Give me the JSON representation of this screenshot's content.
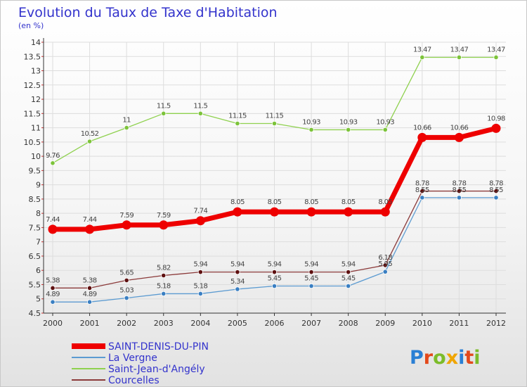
{
  "header": {
    "title": "Evolution du Taux de Taxe d'Habitation",
    "unit": "(en %)"
  },
  "colors": {
    "background_top": "#ffffff",
    "background_bottom": "#e4e4e4",
    "title": "#3333cc",
    "grid": "#dddddd",
    "axis": "#333333"
  },
  "logo": {
    "text": "Proxiti",
    "letter_colors": [
      "#2a7fd4",
      "#e3491b",
      "#7cbc2a",
      "#f0a500",
      "#2a7fd4",
      "#e3491b",
      "#7cbc2a"
    ]
  },
  "chart_data": {
    "type": "line",
    "title": "Evolution du Taux de Taxe d'Habitation",
    "ylabel": "(en %)",
    "xlabel": "",
    "x": [
      "2000",
      "2001",
      "2002",
      "2003",
      "2004",
      "2005",
      "2006",
      "2007",
      "2008",
      "2009",
      "2010",
      "2011",
      "2012"
    ],
    "ylim": [
      4.5,
      14
    ],
    "yticks": [
      4.5,
      5,
      5.5,
      6,
      6.5,
      7,
      7.5,
      8,
      8.5,
      9,
      9.5,
      10,
      10.5,
      11,
      11.5,
      12,
      12.5,
      13,
      13.5,
      14
    ],
    "ytick_labels": [
      "4.5",
      "5",
      "5.5",
      "6",
      "6.5",
      "7",
      "7.5",
      "8",
      "8.5",
      "9",
      "9.5",
      "10",
      "10.5",
      "11",
      "11.5",
      "12",
      "12.5",
      "13",
      "13.5",
      "14"
    ],
    "grid": true,
    "legend_position": "bottom-left",
    "series": [
      {
        "name": "Saint-Jean-d'Angély",
        "color": "#8fd14f",
        "point_color": "#7cc33a",
        "width": 1.3,
        "marker": 3.2,
        "values": [
          9.76,
          10.52,
          11,
          11.5,
          11.5,
          11.15,
          11.15,
          10.93,
          10.93,
          10.93,
          13.47,
          13.47,
          13.47
        ],
        "labels": [
          "9.76",
          "10.52",
          "11",
          "11.5",
          "11.5",
          "11.15",
          "11.15",
          "10.93",
          "10.93",
          "10.93",
          "13.47",
          "13.47",
          "13.47"
        ]
      },
      {
        "name": "Courcelles",
        "color": "#8b3a3a",
        "point_color": "#5e1010",
        "width": 1.3,
        "marker": 3.2,
        "values": [
          5.38,
          5.38,
          5.65,
          5.82,
          5.94,
          5.94,
          5.94,
          5.94,
          5.94,
          6.18,
          8.78,
          8.78,
          8.78
        ],
        "labels": [
          "5.38",
          "5.38",
          "5.65",
          "5.82",
          "5.94",
          "5.94",
          "5.94",
          "5.94",
          "5.94",
          "6.18",
          "8.78",
          "8.78",
          "8.78"
        ]
      },
      {
        "name": "La Vergne",
        "color": "#5c9bd1",
        "point_color": "#3a7fc2",
        "width": 1.3,
        "marker": 3.2,
        "values": [
          4.89,
          4.89,
          5.03,
          5.18,
          5.18,
          5.34,
          5.45,
          5.45,
          5.45,
          5.95,
          8.55,
          8.55,
          8.55
        ],
        "labels": [
          "4.89",
          "4.89",
          "5.03",
          "5.18",
          "5.18",
          "5.34",
          "5.45",
          "5.45",
          "5.45",
          "5.95",
          "8.55",
          "8.55",
          "8.55"
        ]
      },
      {
        "name": "SAINT-DENIS-DU-PIN",
        "color": "#ee0000",
        "point_color": "#ee0000",
        "width": 7,
        "marker": 6.5,
        "values": [
          7.44,
          7.44,
          7.59,
          7.59,
          7.74,
          8.05,
          8.05,
          8.05,
          8.05,
          8.05,
          10.66,
          10.66,
          10.98
        ],
        "labels": [
          "7.44",
          "7.44",
          "7.59",
          "7.59",
          "7.74",
          "8.05",
          "8.05",
          "8.05",
          "8.05",
          "8.05",
          "10.66",
          "10.66",
          "10.98"
        ]
      }
    ],
    "legend": [
      {
        "name": "SAINT-DENIS-DU-PIN",
        "color": "#ee0000",
        "thick": true
      },
      {
        "name": "La Vergne",
        "color": "#5c9bd1",
        "thick": false
      },
      {
        "name": "Saint-Jean-d'Angély",
        "color": "#8fd14f",
        "thick": false
      },
      {
        "name": "Courcelles",
        "color": "#8b3a3a",
        "thick": false
      }
    ]
  }
}
